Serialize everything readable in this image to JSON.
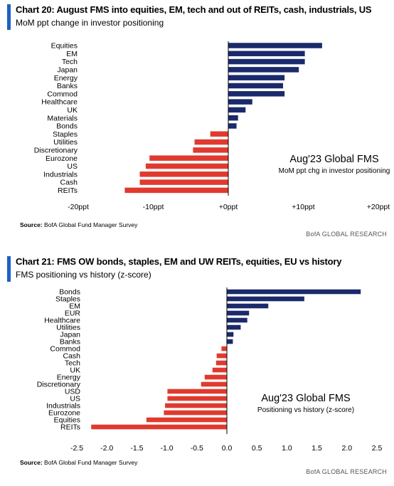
{
  "charts": [
    {
      "title": "Chart 20: August FMS into equities, EM, tech and out of REITs, cash, industrials, US",
      "subtitle": "MoM ppt change in investor positioning",
      "source_label": "Source:",
      "source_text": "BofA Global Fund Manager Survey",
      "research": "BofA GLOBAL RESEARCH"
    },
    {
      "title": "Chart 21: FMS OW bonds, staples, EM and UW REITs, equities, EU vs history",
      "subtitle": "FMS positioning vs history (z-score)",
      "source_label": "Source:",
      "source_text": "BofA Global Fund Manager Survey",
      "research": "BofA GLOBAL RESEARCH"
    }
  ],
  "colors": {
    "positive": "#1b2a6b",
    "negative": "#e03a2f",
    "accent": "#1f5fc4",
    "axis": "#000000"
  },
  "chart_data": [
    {
      "type": "bar",
      "orientation": "horizontal",
      "title": "Chart 20: August FMS into equities, EM, tech and out of REITs, cash, industrials, US",
      "subtitle": "MoM ppt change in investor positioning",
      "annotation_title": "Aug'23 Global FMS",
      "annotation_text": "MoM ppt chg in investor positioning",
      "categories": [
        "Equities",
        "EM",
        "Tech",
        "Japan",
        "Energy",
        "Banks",
        "Commod",
        "Healthcare",
        "UK",
        "Materials",
        "Bonds",
        "Staples",
        "Utilities",
        "Discretionary",
        "Eurozone",
        "US",
        "Industrials",
        "Cash",
        "REITs"
      ],
      "values": [
        12.5,
        10.2,
        10.2,
        9.4,
        7.5,
        7.3,
        7.5,
        3.2,
        2.3,
        1.3,
        1.1,
        -2.4,
        -4.5,
        -4.7,
        -10.5,
        -11.0,
        -11.8,
        -11.8,
        -13.8
      ],
      "xlim": [
        -20,
        20
      ],
      "xticks": [
        -20,
        -10,
        0,
        10,
        20
      ],
      "xtick_labels": [
        "-20ppt",
        "-10ppt",
        "+0ppt",
        "+10ppt",
        "+20ppt"
      ],
      "grid": false
    },
    {
      "type": "bar",
      "orientation": "horizontal",
      "title": "Chart 21: FMS OW bonds, staples, EM and UW REITs, equities, EU vs history",
      "subtitle": "FMS positioning vs history (z-score)",
      "annotation_title": "Aug'23 Global FMS",
      "annotation_text": "Positioning vs history (z-score)",
      "categories": [
        "Bonds",
        "Staples",
        "EM",
        "EUR",
        "Healthcare",
        "Utilities",
        "Japan",
        "Banks",
        "Commod",
        "Cash",
        "Tech",
        "UK",
        "Energy",
        "Discretionary",
        "USD",
        "US",
        "Industrials",
        "Eurozone",
        "Equities",
        "REITs"
      ],
      "values": [
        2.23,
        1.29,
        0.69,
        0.37,
        0.34,
        0.23,
        0.11,
        0.1,
        -0.09,
        -0.17,
        -0.18,
        -0.24,
        -0.37,
        -0.43,
        -0.99,
        -0.99,
        -1.03,
        -1.05,
        -1.34,
        -2.26
      ],
      "xlim": [
        -2.5,
        2.5
      ],
      "xticks": [
        -2.5,
        -2.0,
        -1.5,
        -1.0,
        -0.5,
        0.0,
        0.5,
        1.0,
        1.5,
        2.0,
        2.5
      ],
      "xtick_labels": [
        "-2.5",
        "-2.0",
        "-1.5",
        "-1.0",
        "-0.5",
        "0.0",
        "0.5",
        "1.0",
        "1.5",
        "2.0",
        "2.5"
      ],
      "grid": false
    }
  ]
}
